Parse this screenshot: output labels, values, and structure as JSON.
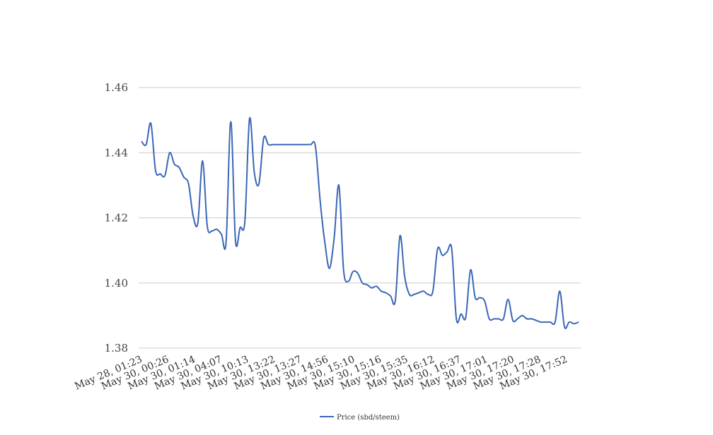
{
  "chart_data": {
    "type": "line",
    "title": "",
    "xlabel": "",
    "ylabel": "",
    "ylim": [
      1.38,
      1.46
    ],
    "y_ticks": [
      "1.46",
      "1.44",
      "1.42",
      "1.40",
      "1.38"
    ],
    "x_tick_labels": [
      "May 28, 01:23",
      "May 30, 00:26",
      "May 30, 01:14",
      "May 30, 04:07",
      "May 30, 10:13",
      "May 30, 13:22",
      "May 30, 13:27",
      "May 30, 14:56",
      "May 30, 15:10",
      "May 30, 15:16",
      "May 30, 15:35",
      "May 30, 16:12",
      "May 30, 16:37",
      "May 30, 17:01",
      "May 30, 17:20",
      "May 30, 17:28",
      "May 30, 17:52"
    ],
    "grid": true,
    "legend_position": "bottom",
    "series": [
      {
        "name": "Price (sbd/steem)",
        "color": "#3a66b8",
        "values": [
          1.4435,
          1.4425,
          1.449,
          1.4345,
          1.4335,
          1.433,
          1.44,
          1.4365,
          1.4355,
          1.4325,
          1.4305,
          1.4205,
          1.4185,
          1.4375,
          1.4175,
          1.416,
          1.4165,
          1.415,
          1.4125,
          1.4495,
          1.413,
          1.417,
          1.419,
          1.4505,
          1.434,
          1.4305,
          1.4445,
          1.4425,
          1.4425,
          1.4425,
          1.4425,
          1.4425,
          1.4425,
          1.4425,
          1.4425,
          1.4425,
          1.4425,
          1.442,
          1.4255,
          1.4125,
          1.4045,
          1.414,
          1.43,
          1.404,
          1.4005,
          1.4035,
          1.403,
          1.4,
          1.3995,
          1.3985,
          1.399,
          1.3975,
          1.397,
          1.396,
          1.3945,
          1.4145,
          1.402,
          1.3965,
          1.3965,
          1.397,
          1.3975,
          1.3965,
          1.3975,
          1.4105,
          1.4085,
          1.4095,
          1.4105,
          1.389,
          1.3905,
          1.3895,
          1.404,
          1.3955,
          1.3955,
          1.3945,
          1.389,
          1.389,
          1.389,
          1.389,
          1.395,
          1.3885,
          1.389,
          1.39,
          1.389,
          1.389,
          1.3885,
          1.388,
          1.388,
          1.388,
          1.388,
          1.3975,
          1.3865,
          1.388,
          1.3875,
          1.388
        ]
      }
    ]
  }
}
